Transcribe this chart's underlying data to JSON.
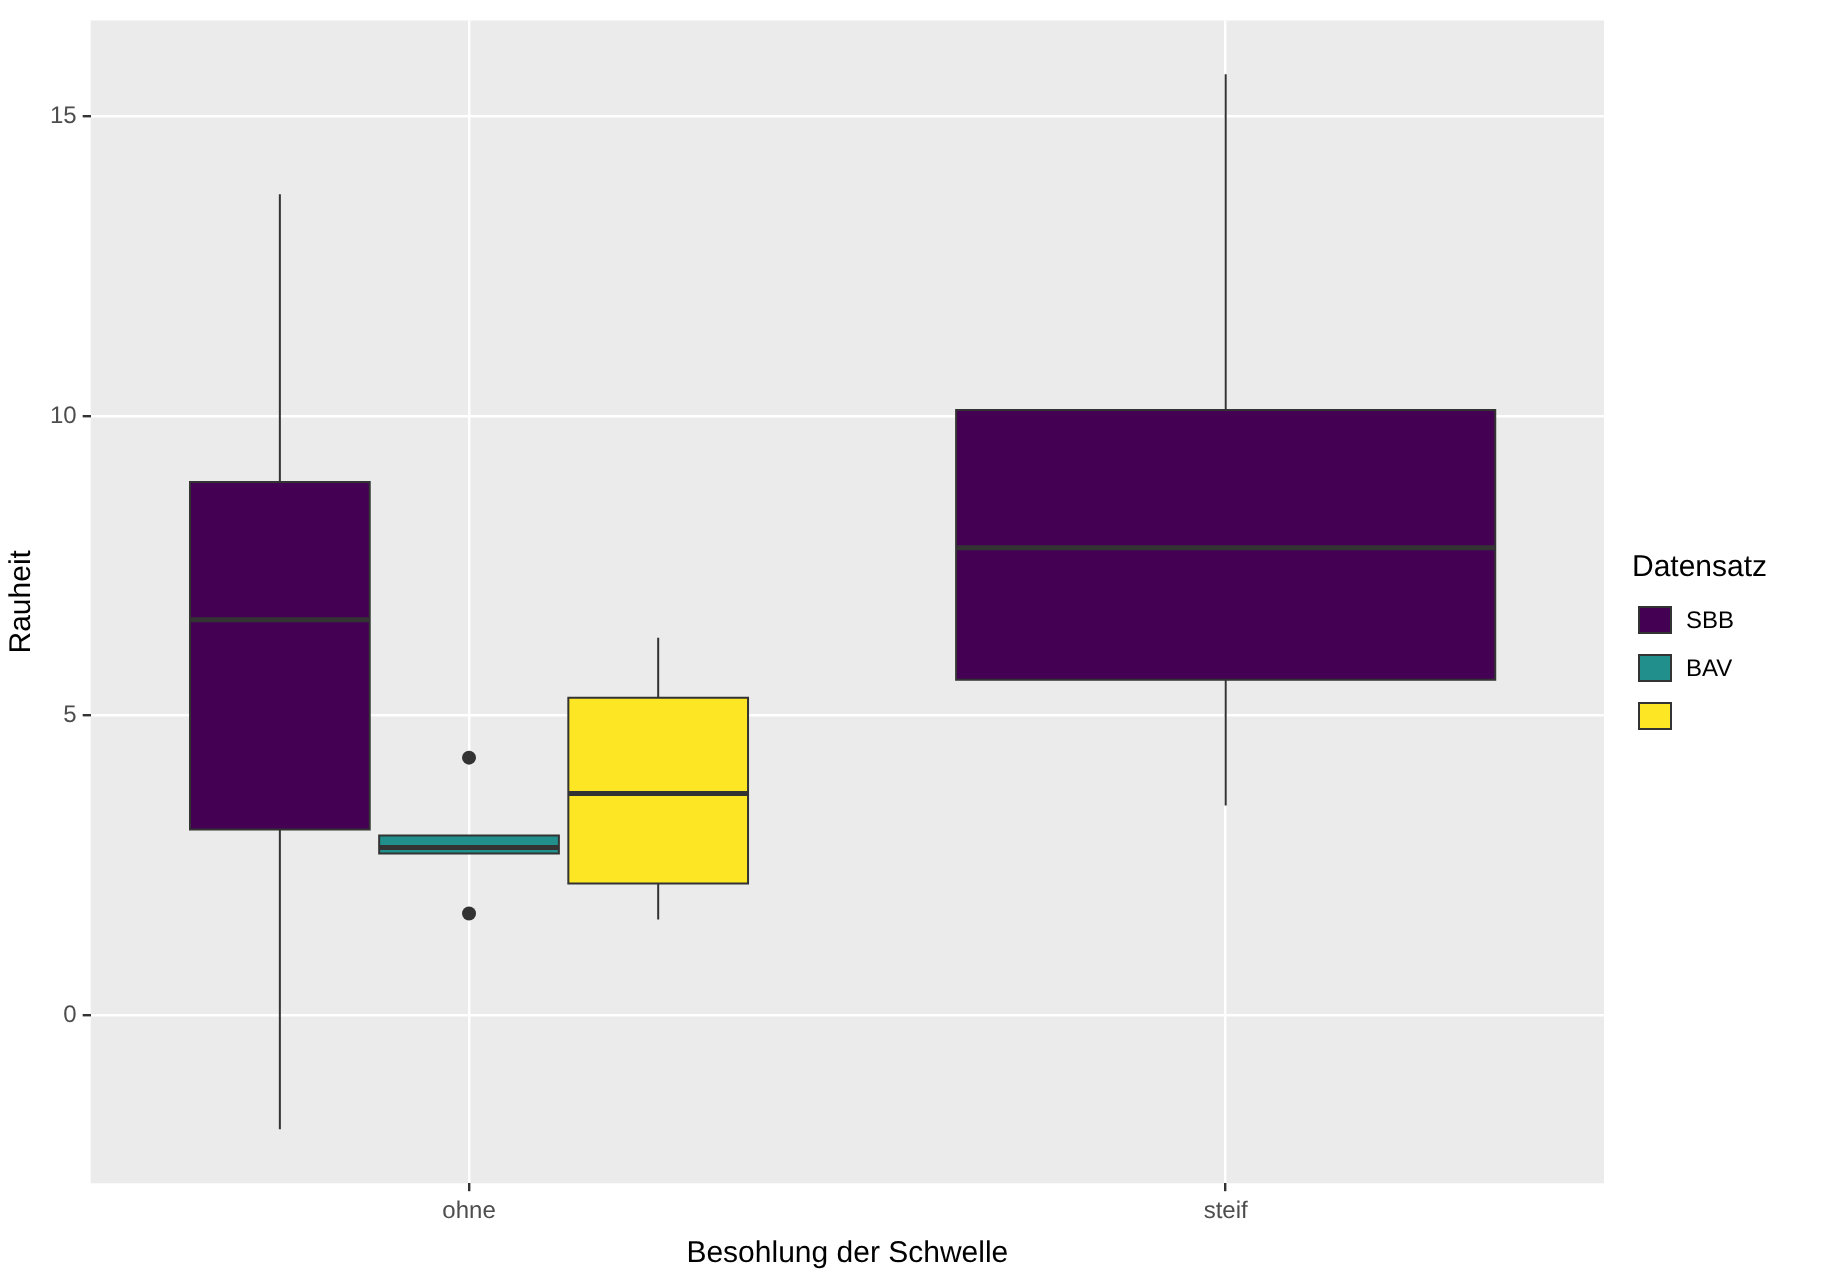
{
  "chart_data": {
    "type": "box",
    "categories": [
      "ohne",
      "steif"
    ],
    "xlabel": "Besohlung der Schwelle",
    "ylabel": "Rauheit",
    "legend_title": "Datensatz",
    "legend": "right",
    "grid": true,
    "ylim": [
      -2.8,
      16.6
    ],
    "yticks": [
      0,
      5,
      10,
      15
    ],
    "series": [
      {
        "name": "SBB",
        "color": "#440154",
        "boxes": [
          {
            "low": -1.9,
            "q1": 3.1,
            "median": 6.6,
            "q3": 8.9,
            "high": 13.7
          },
          {
            "low": 3.5,
            "q1": 5.6,
            "median": 7.8,
            "q3": 10.1,
            "high": 15.7
          }
        ]
      },
      {
        "name": "BAV",
        "color": "#21908c",
        "boxes": [
          {
            "low": 2.7,
            "q1": 2.7,
            "median": 2.8,
            "q3": 3.0,
            "high": 3.0,
            "outliers": [
              4.3,
              1.7
            ]
          },
          null
        ]
      },
      {
        "color": "#fde725",
        "boxes": [
          {
            "low": 1.6,
            "q1": 2.2,
            "median": 3.7,
            "q3": 5.3,
            "high": 6.3
          },
          null
        ]
      }
    ]
  }
}
